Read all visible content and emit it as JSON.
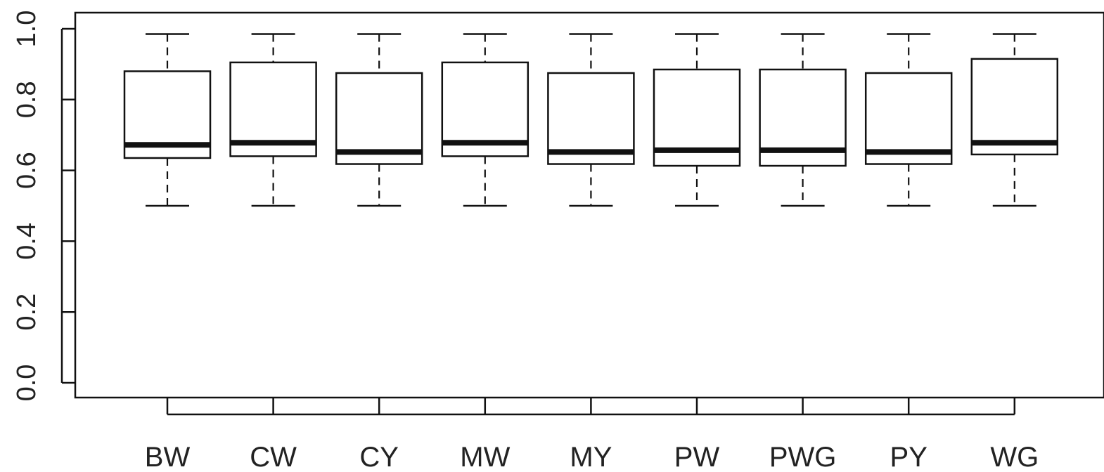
{
  "chart_data": {
    "type": "boxplot",
    "title": "",
    "xlabel": "",
    "ylabel": "",
    "ylim": [
      0.0,
      1.0
    ],
    "yticks": [
      "0.0",
      "0.2",
      "0.4",
      "0.6",
      "0.8",
      "1.0"
    ],
    "grid": false,
    "categories": [
      "BW",
      "CW",
      "CY",
      "MW",
      "MY",
      "PW",
      "PWG",
      "PY",
      "WG"
    ],
    "boxes": [
      {
        "label": "BW",
        "whisker_low": 0.5,
        "q1": 0.635,
        "median": 0.672,
        "q3": 0.88,
        "whisker_high": 0.985
      },
      {
        "label": "CW",
        "whisker_low": 0.5,
        "q1": 0.64,
        "median": 0.678,
        "q3": 0.905,
        "whisker_high": 0.985
      },
      {
        "label": "CY",
        "whisker_low": 0.5,
        "q1": 0.618,
        "median": 0.652,
        "q3": 0.875,
        "whisker_high": 0.985
      },
      {
        "label": "MW",
        "whisker_low": 0.5,
        "q1": 0.64,
        "median": 0.678,
        "q3": 0.905,
        "whisker_high": 0.985
      },
      {
        "label": "MY",
        "whisker_low": 0.5,
        "q1": 0.618,
        "median": 0.652,
        "q3": 0.875,
        "whisker_high": 0.985
      },
      {
        "label": "PW",
        "whisker_low": 0.5,
        "q1": 0.613,
        "median": 0.657,
        "q3": 0.885,
        "whisker_high": 0.985
      },
      {
        "label": "PWG",
        "whisker_low": 0.5,
        "q1": 0.613,
        "median": 0.657,
        "q3": 0.885,
        "whisker_high": 0.985
      },
      {
        "label": "PY",
        "whisker_low": 0.5,
        "q1": 0.618,
        "median": 0.652,
        "q3": 0.875,
        "whisker_high": 0.985
      },
      {
        "label": "WG",
        "whisker_low": 0.5,
        "q1": 0.645,
        "median": 0.678,
        "q3": 0.915,
        "whisker_high": 0.985
      }
    ],
    "colors": {
      "stroke": "#111111",
      "box_fill": "#ffffff",
      "text": "#222222"
    }
  }
}
